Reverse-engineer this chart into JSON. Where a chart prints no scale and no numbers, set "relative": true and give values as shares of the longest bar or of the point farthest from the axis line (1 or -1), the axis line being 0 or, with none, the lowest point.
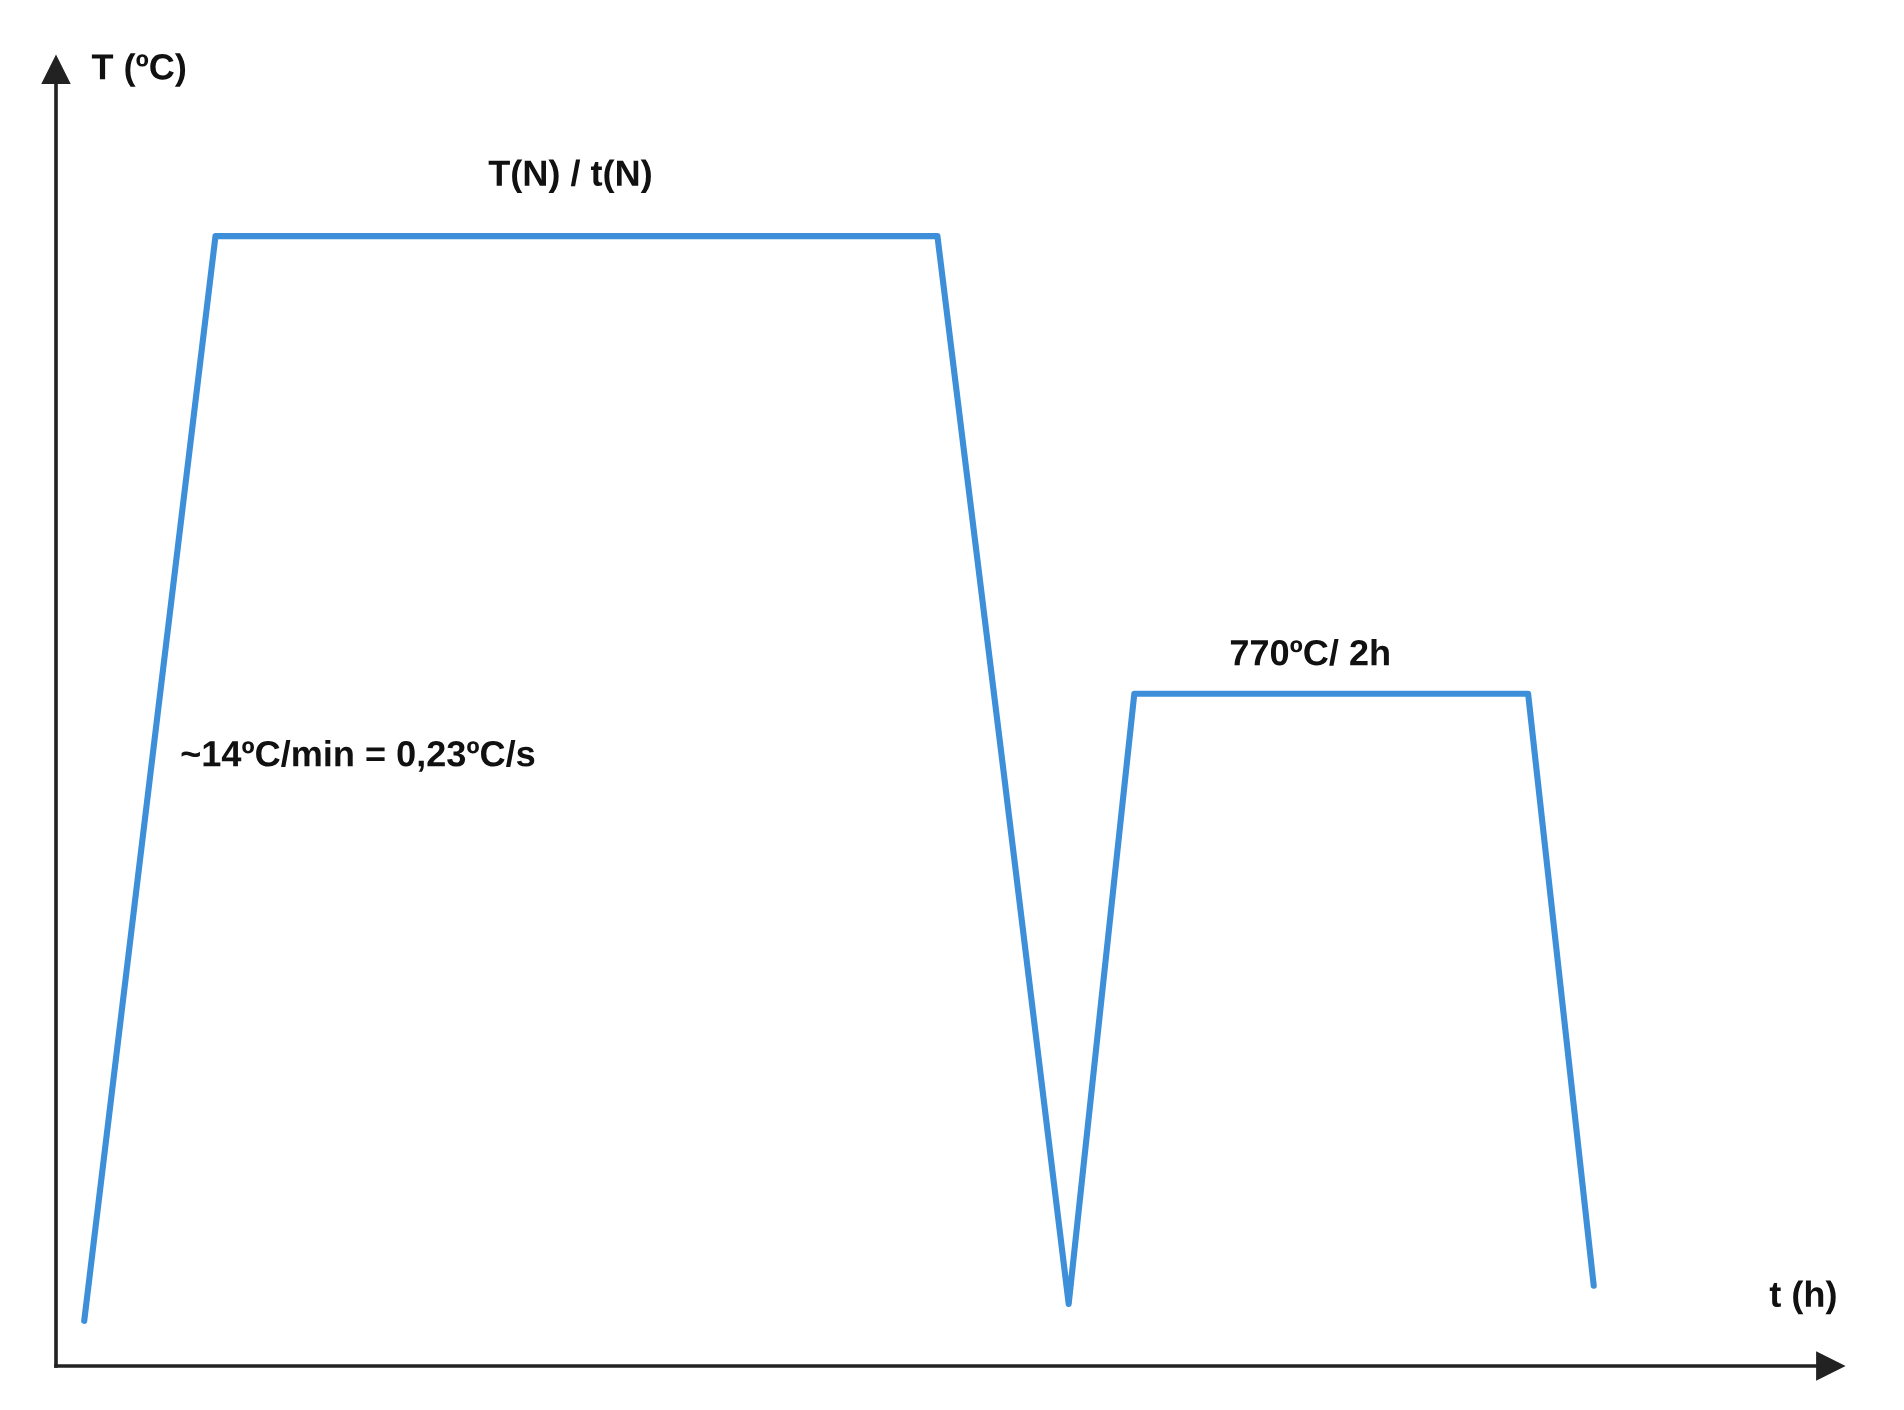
{
  "chart_data": {
    "type": "line",
    "relative": true,
    "xlabel": "t (h)",
    "ylabel": "T (ºC)",
    "categories": [
      null,
      null,
      null,
      null,
      null,
      null,
      null,
      null,
      null,
      null,
      null,
      null,
      null,
      null,
      null,
      null,
      null,
      null,
      null,
      null,
      null,
      null,
      null,
      null
    ],
    "tick_labels": false,
    "series": [
      {
        "color": "#3d8fd9",
        "values": [
          0.04,
          0.52,
          1,
          1,
          1,
          1,
          1,
          1,
          1,
          1,
          1,
          1,
          1,
          1,
          0.53,
          0.055,
          0.595,
          0.595,
          0.595,
          0.595,
          0.595,
          0.595,
          0.595,
          0.071
        ]
      }
    ],
    "annotations": [
      "T(N) / t(N)",
      "770ºC/ 2h",
      "~14ºC/min = 0,23ºC/s"
    ],
    "legend": false
  }
}
